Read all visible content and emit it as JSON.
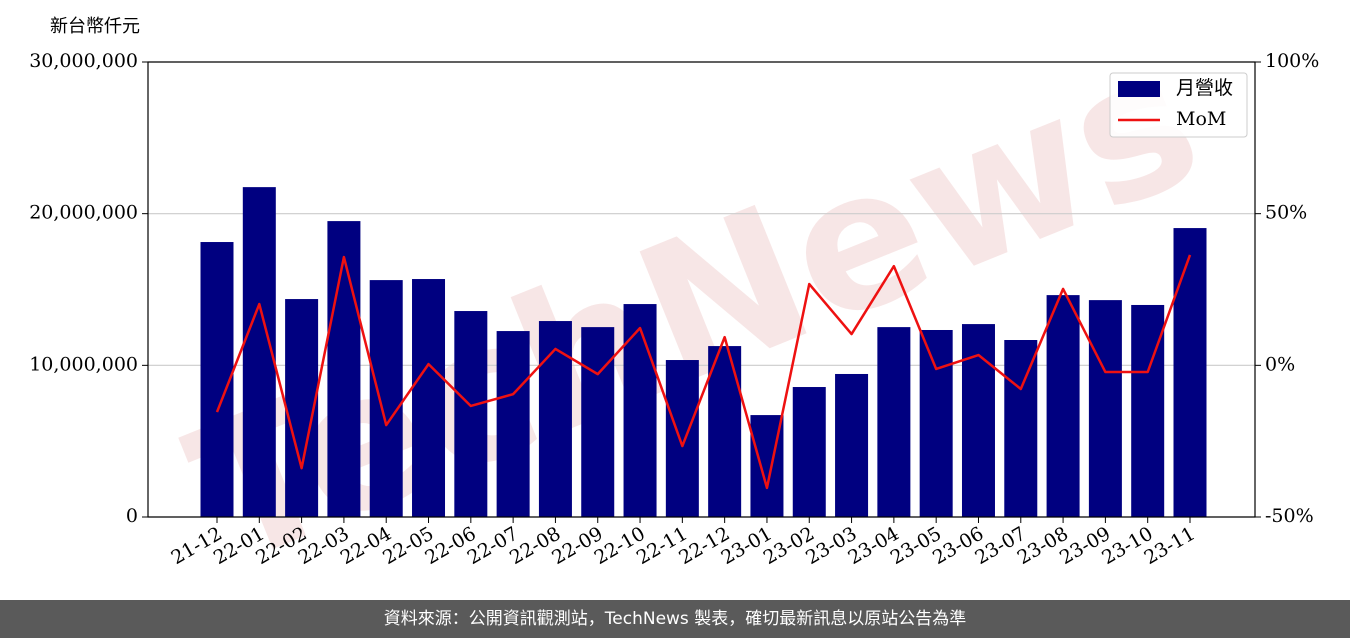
{
  "chart_data": {
    "type": "bar",
    "y_label": "新台幣仟元",
    "watermark": "TechNews",
    "categories": [
      "21-12",
      "22-01",
      "22-02",
      "22-03",
      "22-04",
      "22-05",
      "22-06",
      "22-07",
      "22-08",
      "22-09",
      "22-10",
      "22-11",
      "22-12",
      "23-01",
      "23-02",
      "23-03",
      "23-04",
      "23-05",
      "23-06",
      "23-07",
      "23-08",
      "23-09",
      "23-10",
      "23-11"
    ],
    "series": [
      {
        "name": "月營收",
        "type": "bar",
        "color": "#000080",
        "values": [
          18130000,
          21750000,
          14370000,
          19510000,
          15620000,
          15690000,
          13580000,
          12260000,
          12920000,
          12520000,
          14040000,
          10350000,
          11270000,
          6720000,
          8570000,
          9430000,
          12520000,
          12330000,
          12720000,
          11670000,
          14630000,
          14300000,
          13980000,
          19050000
        ]
      },
      {
        "name": "MoM",
        "type": "line",
        "axis": "y2",
        "color": "#ee1111",
        "values": [
          -15.4,
          20.2,
          -33.9,
          35.7,
          -19.7,
          0.4,
          -13.4,
          -9.5,
          5.4,
          -2.9,
          12.3,
          -26.6,
          9.3,
          -40.4,
          26.8,
          10.3,
          32.7,
          -1.2,
          3.4,
          -7.8,
          25.2,
          -2.2,
          -2.2,
          36.4
        ]
      }
    ],
    "ylim": [
      0,
      30000000
    ],
    "yticks": [
      {
        "value": 0,
        "label": "0"
      },
      {
        "value": 10000000,
        "label": "10,000,000"
      },
      {
        "value": 20000000,
        "label": "20,000,000"
      },
      {
        "value": 30000000,
        "label": "30,000,000"
      }
    ],
    "y2lim": [
      -50,
      100
    ],
    "y2ticks": [
      {
        "value": -50,
        "label": "-50%"
      },
      {
        "value": 0,
        "label": "0%"
      },
      {
        "value": 50,
        "label": "50%"
      },
      {
        "value": 100,
        "label": "100%"
      }
    ],
    "grid": true,
    "legend": "upper right"
  },
  "footer": "資料來源：公開資訊觀測站，TechNews 製表，確切最新訊息以原站公告為準"
}
